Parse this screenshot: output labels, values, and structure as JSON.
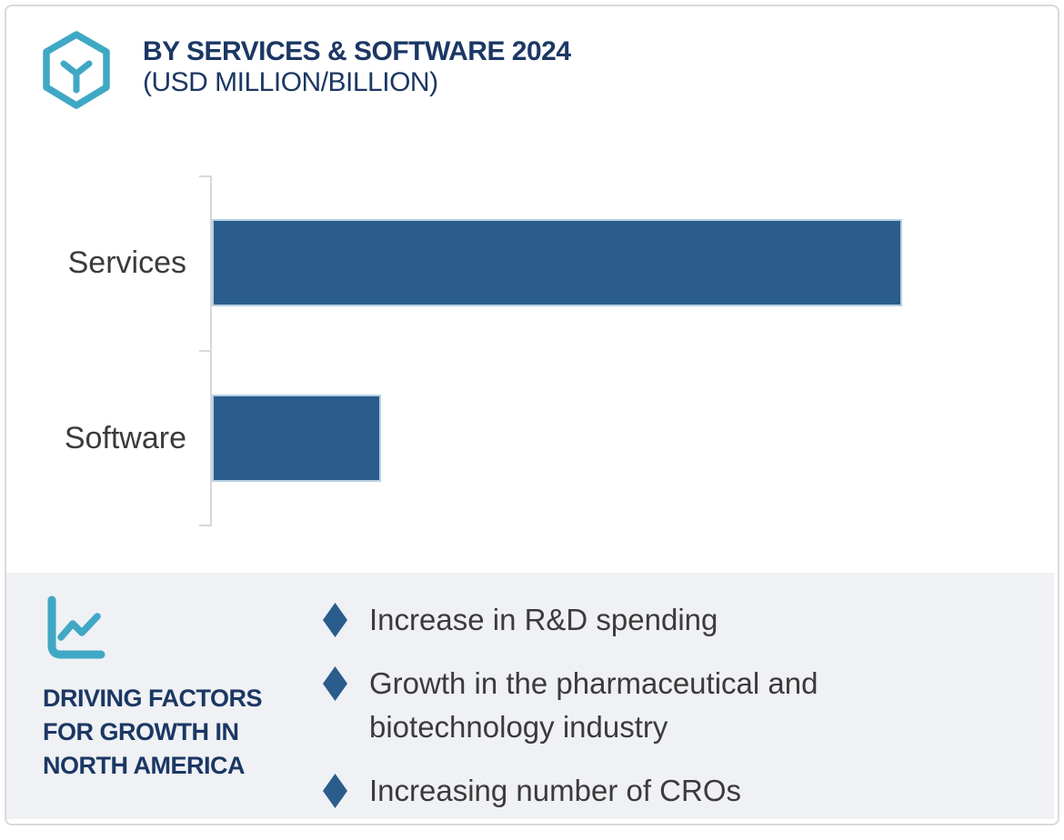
{
  "header": {
    "title": "BY SERVICES & SOFTWARE 2024",
    "subtitle": "(USD MILLION/BILLION)",
    "title_color": "#1B3764",
    "logo_icon": "hexagon-cube-icon",
    "logo_color": "#3FA8C5"
  },
  "chart_data": {
    "type": "bar",
    "orientation": "horizontal",
    "title": "BY SERVICES & SOFTWARE 2024",
    "subtitle": "(USD MILLION/BILLION)",
    "categories": [
      "Services",
      "Software"
    ],
    "values": [
      100,
      24.5
    ],
    "values_note": "no numeric axis or data labels are shown; values are relative bar lengths as % of the longest (Services) bar",
    "bar_color": "#2A5C8C",
    "bar_border_color": "#B7D0E2",
    "axis": {
      "value_axis_visible": false,
      "category_axis_line_visible": true,
      "axis_color": "#D8D8DA",
      "tick_marks": 3
    },
    "legend": "none",
    "grid": "off"
  },
  "driving_factors": {
    "icon": "line-chart-icon",
    "icon_color": "#3FA8C5",
    "panel_bg": "#EFF1F4",
    "heading": "DRIVING FACTORS\nFOR GROWTH IN\nNORTH AMERICA",
    "heading_color": "#1B3764",
    "bullet_marker": "diamond",
    "bullet_marker_color": "#2A5C8C",
    "items": [
      "Increase in R&D spending",
      "Growth in the pharmaceutical and\nbiotechnology industry",
      "Increasing number of CROs"
    ]
  }
}
